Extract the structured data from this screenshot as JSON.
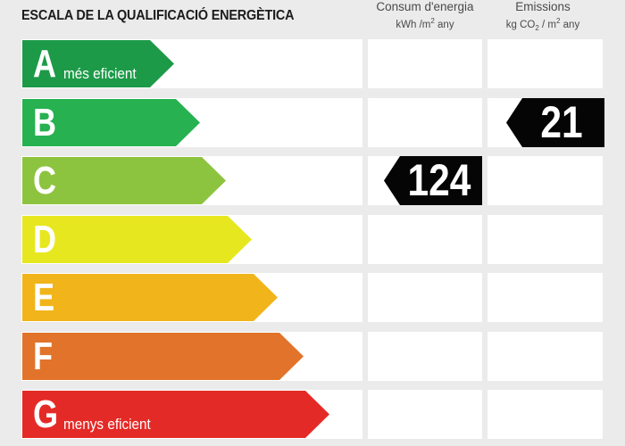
{
  "title": "ESCALA DE LA QUALIFICACIÓ ENERGÈTICA",
  "columns": {
    "consum": {
      "label": "Consum d'energia",
      "unit_pre": "kWh /m",
      "unit_sup": "2",
      "unit_post": " any"
    },
    "emissions": {
      "label": "Emissions",
      "unit_pre": "kg CO",
      "unit_sub": "2",
      "unit_mid": " / m",
      "unit_sup": "2",
      "unit_post": " any"
    }
  },
  "ratings": [
    {
      "letter": "A",
      "label": "més eficient",
      "color": "#1d9a48"
    },
    {
      "letter": "B",
      "label": "",
      "color": "#27b150"
    },
    {
      "letter": "C",
      "label": "",
      "color": "#8dc43f"
    },
    {
      "letter": "D",
      "label": "",
      "color": "#e7e720"
    },
    {
      "letter": "E",
      "label": "",
      "color": "#f1b41a"
    },
    {
      "letter": "F",
      "label": "",
      "color": "#e2732a"
    },
    {
      "letter": "G",
      "label": "menys eficient",
      "color": "#e42a26"
    }
  ],
  "consumption": {
    "value": "124",
    "rating": "C"
  },
  "emissions": {
    "value": "21",
    "rating": "B"
  }
}
